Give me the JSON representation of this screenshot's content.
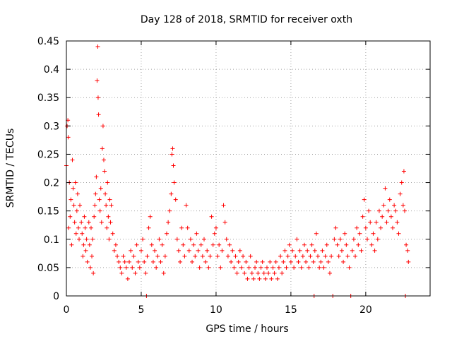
{
  "chart_data": {
    "type": "scatter",
    "title": "Day 128 of 2018, SRMTID for receiver oxth",
    "xlabel": "GPS time / hours",
    "ylabel": "SRMTID / TECUs",
    "xlim": [
      0,
      24.3
    ],
    "ylim": [
      0,
      0.45
    ],
    "x_ticks": [
      0,
      5,
      10,
      15,
      20
    ],
    "x_tick_labels": [
      "0",
      "5",
      "10",
      "15",
      "20"
    ],
    "y_ticks": [
      0,
      0.05,
      0.1,
      0.15,
      0.2,
      0.25,
      0.3,
      0.35,
      0.4,
      0.45
    ],
    "y_tick_labels": [
      "0",
      "0.05",
      "0.1",
      "0.15",
      "0.2",
      "0.25",
      "0.3",
      "0.35",
      "0.4",
      "0.45"
    ],
    "grid": true,
    "legend": "none",
    "series": [
      {
        "color": "#ff0000",
        "marker": "plus",
        "points": [
          [
            0.0,
            0.23
          ],
          [
            0.05,
            0.3
          ],
          [
            0.1,
            0.31
          ],
          [
            0.12,
            0.28
          ],
          [
            0.15,
            0.12
          ],
          [
            0.2,
            0.2
          ],
          [
            0.25,
            0.14
          ],
          [
            0.3,
            0.17
          ],
          [
            0.35,
            0.09
          ],
          [
            0.4,
            0.24
          ],
          [
            0.45,
            0.19
          ],
          [
            0.5,
            0.16
          ],
          [
            0.55,
            0.13
          ],
          [
            0.6,
            0.2
          ],
          [
            0.65,
            0.11
          ],
          [
            0.7,
            0.15
          ],
          [
            0.75,
            0.18
          ],
          [
            0.8,
            0.12
          ],
          [
            0.85,
            0.1
          ],
          [
            0.9,
            0.16
          ],
          [
            1.0,
            0.13
          ],
          [
            1.05,
            0.11
          ],
          [
            1.1,
            0.07
          ],
          [
            1.15,
            0.09
          ],
          [
            1.2,
            0.14
          ],
          [
            1.25,
            0.12
          ],
          [
            1.3,
            0.08
          ],
          [
            1.35,
            0.1
          ],
          [
            1.4,
            0.06
          ],
          [
            1.5,
            0.13
          ],
          [
            1.55,
            0.09
          ],
          [
            1.6,
            0.05
          ],
          [
            1.65,
            0.12
          ],
          [
            1.7,
            0.07
          ],
          [
            1.75,
            0.1
          ],
          [
            1.8,
            0.04
          ],
          [
            1.85,
            0.14
          ],
          [
            1.9,
            0.16
          ],
          [
            1.95,
            0.18
          ],
          [
            2.0,
            0.21
          ],
          [
            2.05,
            0.38
          ],
          [
            2.1,
            0.44
          ],
          [
            2.12,
            0.35
          ],
          [
            2.15,
            0.32
          ],
          [
            2.2,
            0.17
          ],
          [
            2.25,
            0.15
          ],
          [
            2.3,
            0.19
          ],
          [
            2.35,
            0.13
          ],
          [
            2.4,
            0.26
          ],
          [
            2.45,
            0.3
          ],
          [
            2.5,
            0.24
          ],
          [
            2.55,
            0.22
          ],
          [
            2.6,
            0.18
          ],
          [
            2.65,
            0.16
          ],
          [
            2.7,
            0.12
          ],
          [
            2.75,
            0.2
          ],
          [
            2.8,
            0.14
          ],
          [
            2.85,
            0.1
          ],
          [
            2.9,
            0.17
          ],
          [
            2.95,
            0.13
          ],
          [
            3.0,
            0.16
          ],
          [
            3.1,
            0.11
          ],
          [
            3.2,
            0.08
          ],
          [
            3.3,
            0.09
          ],
          [
            3.4,
            0.07
          ],
          [
            3.5,
            0.06
          ],
          [
            3.6,
            0.05
          ],
          [
            3.7,
            0.04
          ],
          [
            3.8,
            0.07
          ],
          [
            3.9,
            0.06
          ],
          [
            4.0,
            0.05
          ],
          [
            4.1,
            0.03
          ],
          [
            4.2,
            0.06
          ],
          [
            4.3,
            0.08
          ],
          [
            4.4,
            0.05
          ],
          [
            4.5,
            0.07
          ],
          [
            4.6,
            0.04
          ],
          [
            4.7,
            0.09
          ],
          [
            4.8,
            0.06
          ],
          [
            4.9,
            0.05
          ],
          [
            5.0,
            0.08
          ],
          [
            5.1,
            0.1
          ],
          [
            5.2,
            0.06
          ],
          [
            5.3,
            0.04
          ],
          [
            5.35,
            0.0
          ],
          [
            5.4,
            0.07
          ],
          [
            5.5,
            0.12
          ],
          [
            5.6,
            0.14
          ],
          [
            5.7,
            0.09
          ],
          [
            5.8,
            0.06
          ],
          [
            5.9,
            0.08
          ],
          [
            6.0,
            0.05
          ],
          [
            6.1,
            0.07
          ],
          [
            6.2,
            0.1
          ],
          [
            6.3,
            0.06
          ],
          [
            6.4,
            0.09
          ],
          [
            6.5,
            0.04
          ],
          [
            6.6,
            0.07
          ],
          [
            6.7,
            0.11
          ],
          [
            6.8,
            0.13
          ],
          [
            6.9,
            0.15
          ],
          [
            7.0,
            0.18
          ],
          [
            7.05,
            0.25
          ],
          [
            7.1,
            0.26
          ],
          [
            7.15,
            0.23
          ],
          [
            7.2,
            0.2
          ],
          [
            7.3,
            0.17
          ],
          [
            7.4,
            0.1
          ],
          [
            7.5,
            0.08
          ],
          [
            7.6,
            0.06
          ],
          [
            7.7,
            0.12
          ],
          [
            7.8,
            0.09
          ],
          [
            7.9,
            0.07
          ],
          [
            8.0,
            0.16
          ],
          [
            8.1,
            0.12
          ],
          [
            8.2,
            0.08
          ],
          [
            8.3,
            0.1
          ],
          [
            8.4,
            0.06
          ],
          [
            8.5,
            0.09
          ],
          [
            8.6,
            0.07
          ],
          [
            8.7,
            0.11
          ],
          [
            8.8,
            0.08
          ],
          [
            8.9,
            0.05
          ],
          [
            9.0,
            0.09
          ],
          [
            9.1,
            0.07
          ],
          [
            9.2,
            0.1
          ],
          [
            9.3,
            0.06
          ],
          [
            9.4,
            0.08
          ],
          [
            9.5,
            0.05
          ],
          [
            9.6,
            0.07
          ],
          [
            9.7,
            0.14
          ],
          [
            9.8,
            0.09
          ],
          [
            9.9,
            0.11
          ],
          [
            10.0,
            0.12
          ],
          [
            10.1,
            0.07
          ],
          [
            10.2,
            0.09
          ],
          [
            10.3,
            0.05
          ],
          [
            10.4,
            0.08
          ],
          [
            10.5,
            0.16
          ],
          [
            10.6,
            0.13
          ],
          [
            10.7,
            0.1
          ],
          [
            10.8,
            0.07
          ],
          [
            10.9,
            0.09
          ],
          [
            11.0,
            0.06
          ],
          [
            11.1,
            0.08
          ],
          [
            11.2,
            0.05
          ],
          [
            11.3,
            0.07
          ],
          [
            11.4,
            0.04
          ],
          [
            11.5,
            0.06
          ],
          [
            11.6,
            0.08
          ],
          [
            11.7,
            0.05
          ],
          [
            11.8,
            0.07
          ],
          [
            11.9,
            0.04
          ],
          [
            12.0,
            0.06
          ],
          [
            12.1,
            0.03
          ],
          [
            12.2,
            0.05
          ],
          [
            12.3,
            0.07
          ],
          [
            12.4,
            0.04
          ],
          [
            12.5,
            0.03
          ],
          [
            12.6,
            0.05
          ],
          [
            12.7,
            0.06
          ],
          [
            12.8,
            0.04
          ],
          [
            12.9,
            0.03
          ],
          [
            13.0,
            0.05
          ],
          [
            13.1,
            0.06
          ],
          [
            13.2,
            0.04
          ],
          [
            13.3,
            0.03
          ],
          [
            13.4,
            0.05
          ],
          [
            13.5,
            0.04
          ],
          [
            13.6,
            0.06
          ],
          [
            13.7,
            0.03
          ],
          [
            13.8,
            0.05
          ],
          [
            13.9,
            0.04
          ],
          [
            14.0,
            0.06
          ],
          [
            14.1,
            0.03
          ],
          [
            14.2,
            0.05
          ],
          [
            14.3,
            0.07
          ],
          [
            14.4,
            0.04
          ],
          [
            14.5,
            0.06
          ],
          [
            14.6,
            0.08
          ],
          [
            14.7,
            0.05
          ],
          [
            14.8,
            0.07
          ],
          [
            14.9,
            0.09
          ],
          [
            15.0,
            0.06
          ],
          [
            15.1,
            0.08
          ],
          [
            15.2,
            0.05
          ],
          [
            15.3,
            0.07
          ],
          [
            15.4,
            0.1
          ],
          [
            15.5,
            0.06
          ],
          [
            15.6,
            0.08
          ],
          [
            15.7,
            0.05
          ],
          [
            15.8,
            0.07
          ],
          [
            15.9,
            0.09
          ],
          [
            16.0,
            0.06
          ],
          [
            16.1,
            0.08
          ],
          [
            16.2,
            0.05
          ],
          [
            16.3,
            0.07
          ],
          [
            16.4,
            0.09
          ],
          [
            16.5,
            0.06
          ],
          [
            16.55,
            0.0
          ],
          [
            16.6,
            0.08
          ],
          [
            16.7,
            0.11
          ],
          [
            16.8,
            0.07
          ],
          [
            16.9,
            0.05
          ],
          [
            17.0,
            0.06
          ],
          [
            17.1,
            0.08
          ],
          [
            17.2,
            0.05
          ],
          [
            17.3,
            0.07
          ],
          [
            17.4,
            0.09
          ],
          [
            17.5,
            0.06
          ],
          [
            17.6,
            0.04
          ],
          [
            17.7,
            0.07
          ],
          [
            17.8,
            0.0
          ],
          [
            17.9,
            0.1
          ],
          [
            18.0,
            0.12
          ],
          [
            18.1,
            0.09
          ],
          [
            18.2,
            0.07
          ],
          [
            18.3,
            0.1
          ],
          [
            18.4,
            0.08
          ],
          [
            18.5,
            0.06
          ],
          [
            18.6,
            0.11
          ],
          [
            18.7,
            0.09
          ],
          [
            18.8,
            0.07
          ],
          [
            18.9,
            0.05
          ],
          [
            19.0,
            0.0
          ],
          [
            19.1,
            0.08
          ],
          [
            19.2,
            0.1
          ],
          [
            19.3,
            0.07
          ],
          [
            19.4,
            0.12
          ],
          [
            19.5,
            0.09
          ],
          [
            19.6,
            0.11
          ],
          [
            19.7,
            0.08
          ],
          [
            19.8,
            0.14
          ],
          [
            19.9,
            0.17
          ],
          [
            20.0,
            0.12
          ],
          [
            20.1,
            0.1
          ],
          [
            20.2,
            0.15
          ],
          [
            20.3,
            0.13
          ],
          [
            20.4,
            0.09
          ],
          [
            20.5,
            0.11
          ],
          [
            20.6,
            0.08
          ],
          [
            20.7,
            0.13
          ],
          [
            20.8,
            0.1
          ],
          [
            20.9,
            0.15
          ],
          [
            21.0,
            0.12
          ],
          [
            21.1,
            0.14
          ],
          [
            21.2,
            0.16
          ],
          [
            21.3,
            0.19
          ],
          [
            21.4,
            0.13
          ],
          [
            21.5,
            0.15
          ],
          [
            21.6,
            0.17
          ],
          [
            21.7,
            0.14
          ],
          [
            21.8,
            0.12
          ],
          [
            21.9,
            0.16
          ],
          [
            22.0,
            0.15
          ],
          [
            22.1,
            0.13
          ],
          [
            22.2,
            0.11
          ],
          [
            22.3,
            0.18
          ],
          [
            22.4,
            0.2
          ],
          [
            22.5,
            0.16
          ],
          [
            22.55,
            0.22
          ],
          [
            22.6,
            0.15
          ],
          [
            22.65,
            0.0
          ],
          [
            22.7,
            0.09
          ],
          [
            22.8,
            0.08
          ],
          [
            22.85,
            0.06
          ]
        ]
      }
    ]
  }
}
